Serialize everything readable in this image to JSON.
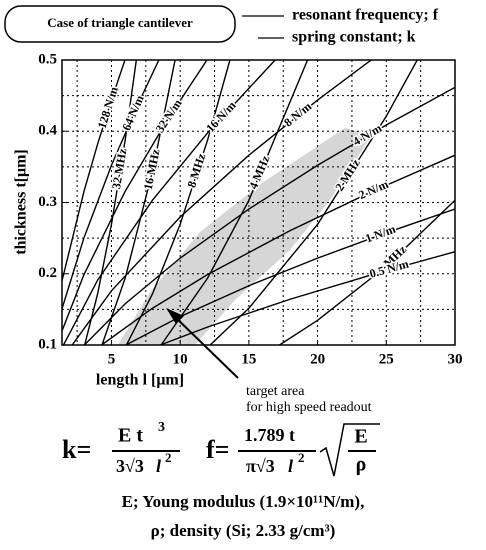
{
  "chart_data": {
    "type": "line",
    "legend_box": "Case of triangle cantilever",
    "xlabel": "length l [μm]",
    "ylabel": "thickness t[μm]",
    "xlim": [
      1.4,
      30
    ],
    "ylim": [
      0.1,
      0.5
    ],
    "xticks": [
      5,
      10,
      15,
      20,
      25,
      30
    ],
    "yticks": [
      0.1,
      0.2,
      0.3,
      0.4,
      0.5
    ],
    "xgrid": [
      2.5,
      5,
      7.5,
      10,
      12.5,
      15,
      17.5,
      20,
      22.5,
      25,
      27.5
    ],
    "ygrid": [
      0.15,
      0.2,
      0.25,
      0.3,
      0.35,
      0.4,
      0.45
    ],
    "grid": true,
    "groups": [
      {
        "name": "resonant frequency; f",
        "color": "#000000",
        "series": [
          {
            "name": "32 MHz",
            "x": [
              3.05,
              4,
              5,
              6,
              6.81
            ],
            "values": [
              0.1,
              0.1724,
              0.2694,
              0.388,
              0.5
            ]
          },
          {
            "name": "16 MHz",
            "x": [
              4.31,
              6,
              8,
              9.63
            ],
            "values": [
              0.1,
              0.194,
              0.3449,
              0.5
            ]
          },
          {
            "name": "8 MHz",
            "x": [
              6.09,
              8,
              10,
              12,
              13.62
            ],
            "values": [
              0.1,
              0.1724,
              0.2694,
              0.388,
              0.5
            ]
          },
          {
            "name": "4 MHz",
            "x": [
              8.615,
              12,
              15,
              19.27
            ],
            "values": [
              0.1,
              0.194,
              0.3031,
              0.5
            ]
          },
          {
            "name": "2 MHz",
            "x": [
              12.18,
              15,
              20,
              25,
              27.25
            ],
            "values": [
              0.1,
              0.1516,
              0.2694,
              0.421,
              0.5
            ]
          },
          {
            "name": "1 MHz",
            "x": [
              17.23,
              20,
              25,
              30
            ],
            "values": [
              0.1,
              0.1347,
              0.2105,
              0.3031
            ]
          }
        ]
      },
      {
        "name": "spring constant; k",
        "color": "#000000",
        "series": [
          {
            "name": "128 N/m",
            "x": [
              1.4,
              3,
              4,
              5,
              5.98
            ],
            "values": [
              0.19,
              0.3157,
              0.3825,
              0.4438,
              0.5
            ]
          },
          {
            "name": "64 N/m",
            "x": [
              1.4,
              3,
              5,
              7,
              8.45
            ],
            "values": [
              0.1508,
              0.2506,
              0.3523,
              0.4409,
              0.5
            ]
          },
          {
            "name": "32 N/m",
            "x": [
              1.4,
              3,
              6,
              9,
              11.95
            ],
            "values": [
              0.1197,
              0.1989,
              0.3158,
              0.4138,
              0.5
            ]
          },
          {
            "name": "16 N/m",
            "x": [
              1.51,
              4,
              8,
              12,
              16.91
            ],
            "values": [
              0.1,
              0.1913,
              0.3036,
              0.3978,
              0.5
            ]
          },
          {
            "name": "8 N/m",
            "x": [
              2.14,
              5,
              10,
              15,
              20,
              23.9
            ],
            "values": [
              0.1,
              0.1761,
              0.2796,
              0.3664,
              0.4438,
              0.5
            ]
          },
          {
            "name": "4 N/m",
            "x": [
              3.03,
              6,
              10,
              15,
              20,
              25,
              30
            ],
            "values": [
              0.1,
              0.1579,
              0.2219,
              0.2908,
              0.3523,
              0.4088,
              0.4616
            ]
          },
          {
            "name": "2 N/m",
            "x": [
              4.28,
              8,
              12,
              18,
              24,
              30
            ],
            "values": [
              0.1,
              0.1518,
              0.1989,
              0.2606,
              0.3157,
              0.3664
            ]
          },
          {
            "name": "1 N/m",
            "x": [
              6.05,
              10,
              15,
              20,
              25,
              30
            ],
            "values": [
              0.1,
              0.1398,
              0.1832,
              0.2219,
              0.2575,
              0.2908
            ]
          },
          {
            "name": "0.5 N/m",
            "x": [
              8.55,
              12,
              18,
              24,
              30
            ],
            "values": [
              0.1,
              0.1253,
              0.1642,
              0.1989,
              0.2309
            ]
          }
        ]
      }
    ],
    "annotation": [
      "target area",
      "for high speed readout"
    ],
    "formula_k": {
      "lhs": "k=",
      "num": "E t",
      "num_exp": "3",
      "den": "3√3",
      "den_var": "l",
      "den_exp": "2"
    },
    "formula_f": {
      "lhs": "f=",
      "num": "1.789 t",
      "den": "π√3",
      "den_var": "l",
      "den_exp": "2",
      "root_num": "E",
      "root_den": "ρ"
    },
    "notes": [
      "E; Young modulus (1.9×10¹¹N/m),",
      "ρ; density (Si; 2.33 g/cm³)"
    ]
  }
}
